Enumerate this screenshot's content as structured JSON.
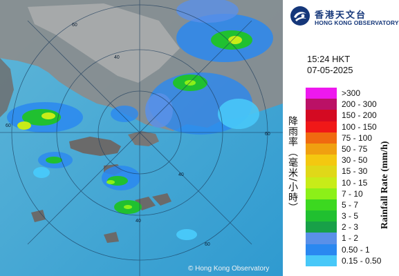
{
  "organisation": {
    "name_zh": "香港天文台",
    "name_en": "HONG KONG OBSERVATORY"
  },
  "timestamp": {
    "time": "15:24 HKT",
    "date": "07-05-2025"
  },
  "legend": {
    "title_zh": "降雨率（毫米/小時）",
    "title_en": "Rainfall Rate (mm/h)",
    "items": [
      {
        "label": ">300",
        "color": "#ee18ee"
      },
      {
        "label": "200 - 300",
        "color": "#bb1166"
      },
      {
        "label": "150 - 200",
        "color": "#d40a22"
      },
      {
        "label": "100 - 150",
        "color": "#f01818"
      },
      {
        "label": "75 - 100",
        "color": "#f06a10"
      },
      {
        "label": "50 - 75",
        "color": "#f0a010"
      },
      {
        "label": "30 - 50",
        "color": "#f4c810"
      },
      {
        "label": "15 - 30",
        "color": "#e0d818"
      },
      {
        "label": "10 - 15",
        "color": "#c8ec18"
      },
      {
        "label": "7 - 10",
        "color": "#8cf018"
      },
      {
        "label": "5 - 7",
        "color": "#3cd820"
      },
      {
        "label": "3 - 5",
        "color": "#20c030"
      },
      {
        "label": "2 - 3",
        "color": "#18a048"
      },
      {
        "label": "1 - 2",
        "color": "#5a90e8"
      },
      {
        "label": "0.50 - 1",
        "color": "#2a88f0"
      },
      {
        "label": "0.15 - 0.50",
        "color": "#48c8f8"
      }
    ]
  },
  "map": {
    "range_ring_labels": [
      "60",
      "40",
      "60",
      "60",
      "40",
      "40",
      "60"
    ],
    "copyright": "© Hong Kong Observatory"
  }
}
